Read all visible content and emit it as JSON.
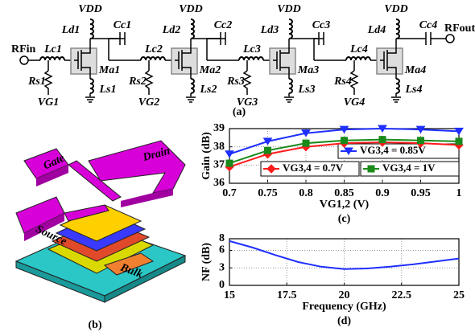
{
  "diagram": {
    "caption": "(a)",
    "rf_in": "RFin",
    "rf_out": "RFout",
    "stages": [
      {
        "vdd": "VDD",
        "ld": "Ld1",
        "cc": "Cc1",
        "m": "Ma1",
        "lc": "Lc1",
        "rs": "Rs1",
        "ls": "Ls1",
        "vg": "VG1"
      },
      {
        "vdd": "VDD",
        "ld": "Ld2",
        "cc": "Cc2",
        "m": "Ma2",
        "lc": "Lc2",
        "rs": "Rs2",
        "ls": "Ls2",
        "vg": "VG2"
      },
      {
        "vdd": "VDD",
        "ld": "Ld3",
        "cc": "Cc3",
        "m": "Ma3",
        "lc": "Lc3",
        "rs": "Rs3",
        "ls": "Ls3",
        "vg": "VG3"
      },
      {
        "vdd": "VDD",
        "ld": "Ld4",
        "cc": "Cc4",
        "m": "Ma4",
        "lc": "Lc4",
        "rs": "Rs4",
        "ls": "Ls4",
        "vg": "VG4"
      }
    ]
  },
  "layout": {
    "caption": "(b)",
    "gate": "Gate",
    "drain": "Drain",
    "source": "Source",
    "bulk": "Bulk"
  },
  "chart_data": [
    {
      "type": "line",
      "caption": "(c)",
      "xlabel": "VG1,2 (V)",
      "ylabel": "Gain (dB)",
      "x": [
        0.7,
        0.75,
        0.8,
        0.85,
        0.9,
        0.95,
        1
      ],
      "xlim": [
        0.7,
        1
      ],
      "xticks": [
        0.7,
        0.75,
        0.8,
        0.85,
        0.9,
        0.95,
        1
      ],
      "ylim": [
        36,
        39
      ],
      "yticks": [
        36,
        37,
        38,
        39
      ],
      "grid": true,
      "series": [
        {
          "name": "VG3,4 = 0.85V",
          "color": "#1f2fff",
          "marker": "triangle-down",
          "values": [
            37.6,
            38.3,
            38.75,
            38.95,
            39.0,
            38.95,
            38.85
          ]
        },
        {
          "name": "VG3,4 = 0.7V",
          "color": "#ff1a1a",
          "marker": "diamond",
          "values": [
            36.9,
            37.6,
            38.0,
            38.2,
            38.25,
            38.2,
            38.1
          ]
        },
        {
          "name": "VG3,4 = 1V",
          "color": "#1a8a1a",
          "marker": "square",
          "values": [
            37.1,
            37.8,
            38.2,
            38.35,
            38.4,
            38.35,
            38.3
          ]
        }
      ]
    },
    {
      "type": "line",
      "caption": "(d)",
      "xlabel": "Frequency (GHz)",
      "ylabel": "NF (dB)",
      "x": [
        15,
        16,
        17,
        18,
        19,
        20,
        21,
        22,
        23,
        24,
        25
      ],
      "xlim": [
        15,
        25
      ],
      "xticks": [
        15,
        17.5,
        20,
        22.5,
        25
      ],
      "ylim": [
        0,
        8
      ],
      "yticks": [
        0,
        3,
        6,
        8
      ],
      "grid": true,
      "series": [
        {
          "color": "#1f2fff",
          "values": [
            7.6,
            6.5,
            5.2,
            4.0,
            3.2,
            2.8,
            2.9,
            3.2,
            3.6,
            4.1,
            4.6
          ]
        }
      ]
    }
  ]
}
